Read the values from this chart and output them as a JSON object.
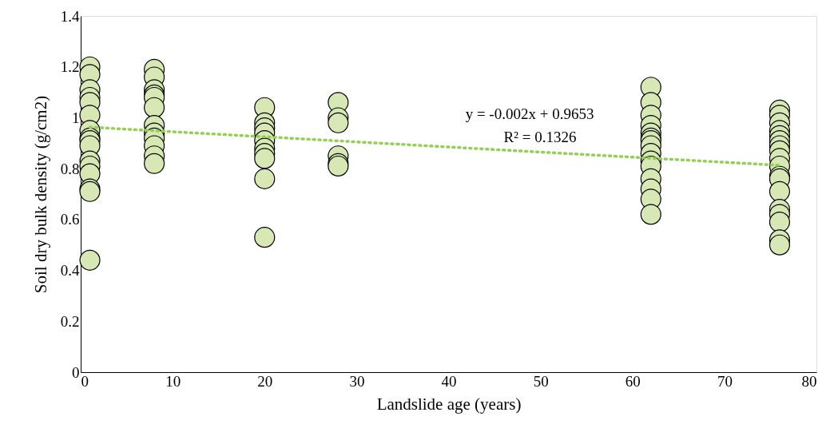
{
  "chart_data": {
    "type": "scatter",
    "xlabel": "Landslide age (years)",
    "ylabel": "Soil dry bulk density (g/cm2)",
    "series": [
      {
        "marker": "circle",
        "color": "#d7e8b5",
        "x": [
          1,
          1,
          1,
          1,
          1,
          1,
          1,
          1,
          1,
          1,
          1,
          1,
          1,
          1,
          1,
          1,
          8,
          8,
          8,
          8,
          8,
          8,
          8,
          8,
          8,
          8,
          8,
          8,
          20,
          20,
          20,
          20,
          20,
          20,
          20,
          20,
          20,
          20,
          28,
          28,
          28,
          28,
          28,
          28,
          62,
          62,
          62,
          62,
          62,
          62,
          62,
          62,
          62,
          62,
          62,
          62,
          62,
          62,
          62,
          76,
          76,
          76,
          76,
          76,
          76,
          76,
          76,
          76,
          76,
          76,
          76,
          76,
          76,
          76,
          76,
          76,
          76
        ],
        "values": [
          1.2,
          1.17,
          1.11,
          1.08,
          1.06,
          1.01,
          0.95,
          0.92,
          0.91,
          0.89,
          0.83,
          0.81,
          0.78,
          0.72,
          0.71,
          0.44,
          1.19,
          1.16,
          1.11,
          1.09,
          1.08,
          1.04,
          0.97,
          0.94,
          0.92,
          0.89,
          0.85,
          0.82,
          1.04,
          0.98,
          0.96,
          0.94,
          0.91,
          0.88,
          0.86,
          0.84,
          0.76,
          0.53,
          1.06,
          1.0,
          0.98,
          0.85,
          0.82,
          0.81,
          1.12,
          1.06,
          1.01,
          0.97,
          0.94,
          0.92,
          0.91,
          0.89,
          0.86,
          0.83,
          0.81,
          0.76,
          0.72,
          0.68,
          0.62,
          1.03,
          1.01,
          0.98,
          0.95,
          0.93,
          0.91,
          0.89,
          0.87,
          0.84,
          0.81,
          0.77,
          0.76,
          0.71,
          0.64,
          0.62,
          0.59,
          0.52,
          0.5
        ]
      },
      {
        "type": "line",
        "color": "#92d050",
        "line_style": "dotted",
        "x": [
          1,
          76
        ],
        "values": [
          0.963,
          0.813
        ]
      }
    ],
    "annotations": [
      "y = -0.002x + 0.9653",
      "R² = 0.1326"
    ],
    "xlim": [
      0,
      80
    ],
    "xticks": [
      0,
      10,
      20,
      30,
      40,
      50,
      60,
      70,
      80
    ],
    "ylim": [
      0,
      1.4
    ],
    "yticks": [
      0,
      0.2,
      0.4,
      0.6,
      0.8,
      1,
      1.2,
      1.4
    ],
    "grid": false
  }
}
